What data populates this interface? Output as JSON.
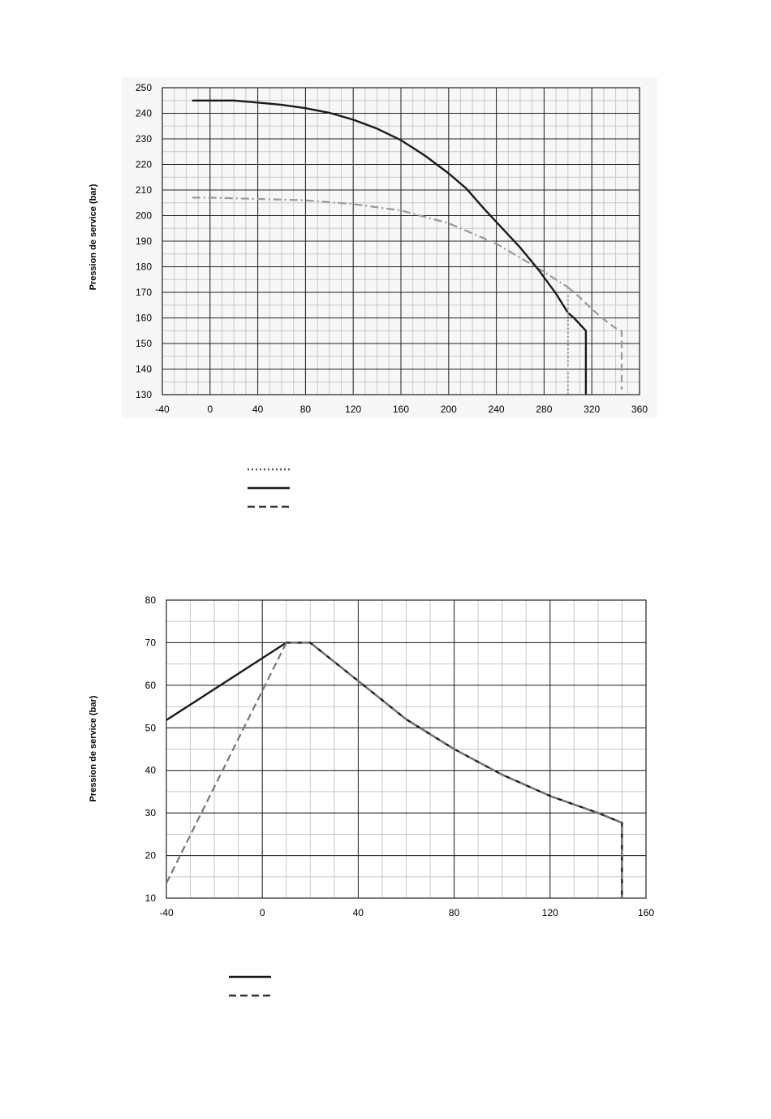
{
  "chart_data": [
    {
      "type": "line",
      "title": "",
      "xlabel": "",
      "ylabel": "Pression de service (bar)",
      "xlim": [
        -40,
        360
      ],
      "ylim": [
        130,
        250
      ],
      "x_ticks": [
        -40,
        0,
        40,
        80,
        120,
        160,
        200,
        240,
        280,
        320,
        360
      ],
      "y_ticks": [
        130,
        140,
        150,
        160,
        170,
        180,
        190,
        200,
        210,
        220,
        230,
        240,
        250
      ],
      "x_minor_step": 10,
      "y_minor_step": 5,
      "grid": true,
      "legend": "bottom-left",
      "series": [
        {
          "style": "dash-dot",
          "color": "#999999",
          "x": [
            -15,
            0,
            40,
            80,
            120,
            160,
            200,
            240,
            280,
            300
          ],
          "y": [
            207,
            207,
            206.5,
            206,
            204.5,
            202,
            197,
            189,
            178,
            172
          ]
        },
        {
          "style": "solid",
          "color": "#1a1a1a",
          "x": [
            -15,
            20,
            40,
            60,
            80,
            100,
            120,
            140,
            160,
            180,
            200,
            215,
            230,
            245,
            260,
            275,
            290,
            300,
            305,
            315,
            315
          ],
          "y": [
            245,
            245,
            244.2,
            243.3,
            242,
            240.2,
            237.5,
            234,
            229.5,
            223.5,
            216.5,
            210.5,
            202.5,
            195,
            187.5,
            179,
            169.5,
            162,
            160,
            155,
            130
          ]
        },
        {
          "style": "dotted",
          "color": "#999999",
          "x": [
            300,
            300
          ],
          "y": [
            172,
            130
          ]
        },
        {
          "style": "dashed",
          "color": "#999999",
          "x": [
            300,
            310,
            320,
            330,
            340,
            345,
            345
          ],
          "y": [
            172,
            168,
            163.5,
            159.5,
            156,
            155,
            132
          ]
        }
      ],
      "legend_entries": [
        {
          "style": "dotted",
          "color": "#555555"
        },
        {
          "style": "solid",
          "color": "#1a1a1a"
        },
        {
          "style": "dashed",
          "color": "#333333"
        }
      ]
    },
    {
      "type": "line",
      "title": "",
      "xlabel": "",
      "ylabel": "Pression de service (bar)",
      "xlim": [
        -40,
        160
      ],
      "ylim": [
        10,
        80
      ],
      "x_ticks": [
        -40,
        0,
        40,
        80,
        120,
        160
      ],
      "y_ticks": [
        10,
        20,
        30,
        40,
        50,
        60,
        70,
        80
      ],
      "x_minor_step": 10,
      "y_minor_step": 5,
      "grid": true,
      "legend": "bottom-left",
      "series": [
        {
          "style": "solid",
          "color": "#1a1a1a",
          "x": [
            -40,
            10,
            20,
            40,
            60,
            80,
            100,
            120,
            140,
            150,
            150
          ],
          "y": [
            51.8,
            70,
            70,
            61,
            52,
            45,
            39,
            34,
            30,
            27.7,
            10
          ]
        },
        {
          "style": "dashed",
          "color": "#777777",
          "x": [
            -40,
            10,
            20,
            40,
            60,
            80,
            100,
            120,
            140,
            150,
            150
          ],
          "y": [
            13.5,
            70,
            70,
            61,
            52,
            45,
            39,
            34,
            30,
            27.7,
            10
          ]
        }
      ],
      "legend_entries": [
        {
          "style": "solid",
          "color": "#1a1a1a"
        },
        {
          "style": "dashed",
          "color": "#333333"
        }
      ]
    }
  ]
}
